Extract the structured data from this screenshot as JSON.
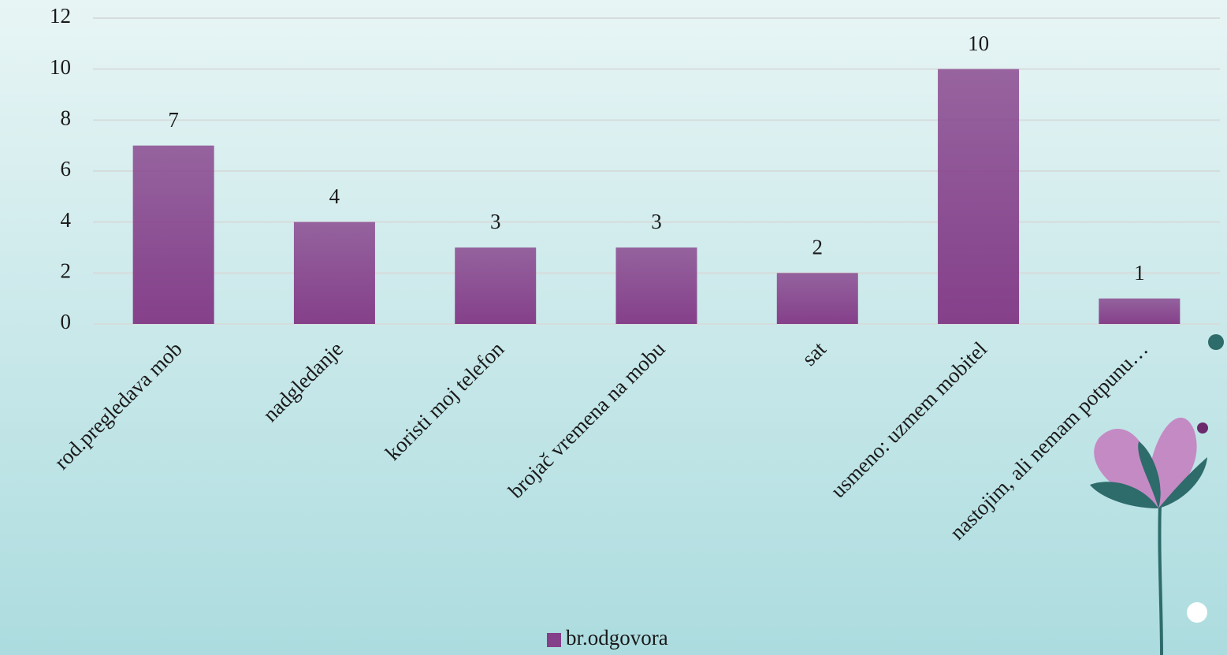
{
  "chart_data": {
    "type": "bar",
    "categories": [
      "rod.pregledava mob",
      "nadgledanje",
      "koristi moj telefon",
      "brojač vremena na mobu",
      "sat",
      "usmeno: uzmem mobitel",
      "nastojim, ali nemam potpunu…"
    ],
    "series": [
      {
        "name": "br.odgovora",
        "color": "#85408a",
        "values": [
          7,
          4,
          3,
          3,
          2,
          10,
          1
        ]
      }
    ],
    "ylim": [
      0,
      12
    ],
    "yticks": [
      0,
      2,
      4,
      6,
      8,
      10,
      12
    ],
    "grid": true,
    "legend": "bottom"
  }
}
